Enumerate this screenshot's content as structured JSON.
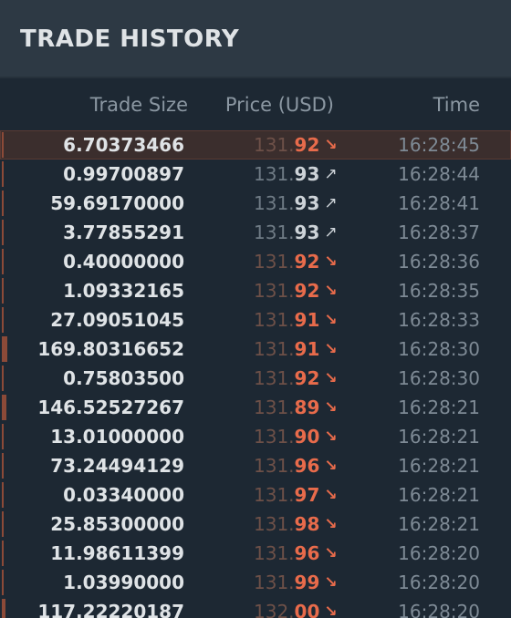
{
  "panel": {
    "title": "TRADE HISTORY",
    "columns": {
      "trade_size": "Trade Size",
      "price": "Price (USD)",
      "time": "Time"
    }
  },
  "colors": {
    "background": "#1d2833",
    "header": "#2d3944",
    "sell": "#e86b4b",
    "buy": "#cdd3d8"
  },
  "trades": [
    {
      "size": "6.70373466",
      "price_int": "131.",
      "price_dec": "92",
      "dir": "down",
      "arrow": "↘",
      "time": "16:28:45",
      "depth": 0.3
    },
    {
      "size": "0.99700897",
      "price_int": "131.",
      "price_dec": "93",
      "dir": "up",
      "arrow": "↗",
      "time": "16:28:44",
      "depth": 0.2
    },
    {
      "size": "59.69170000",
      "price_int": "131.",
      "price_dec": "93",
      "dir": "up",
      "arrow": "↗",
      "time": "16:28:41",
      "depth": 0.3
    },
    {
      "size": "3.77855291",
      "price_int": "131.",
      "price_dec": "93",
      "dir": "up",
      "arrow": "↗",
      "time": "16:28:37",
      "depth": 0.2
    },
    {
      "size": "0.40000000",
      "price_int": "131.",
      "price_dec": "92",
      "dir": "down",
      "arrow": "↘",
      "time": "16:28:36",
      "depth": 0.2
    },
    {
      "size": "1.09332165",
      "price_int": "131.",
      "price_dec": "92",
      "dir": "down",
      "arrow": "↘",
      "time": "16:28:35",
      "depth": 0.2
    },
    {
      "size": "27.09051045",
      "price_int": "131.",
      "price_dec": "91",
      "dir": "down",
      "arrow": "↘",
      "time": "16:28:33",
      "depth": 0.3
    },
    {
      "size": "169.80316652",
      "price_int": "131.",
      "price_dec": "91",
      "dir": "down",
      "arrow": "↘",
      "time": "16:28:30",
      "depth": 1
    },
    {
      "size": "0.75803500",
      "price_int": "131.",
      "price_dec": "92",
      "dir": "down",
      "arrow": "↘",
      "time": "16:28:30",
      "depth": 0.2
    },
    {
      "size": "146.52527267",
      "price_int": "131.",
      "price_dec": "89",
      "dir": "down",
      "arrow": "↘",
      "time": "16:28:21",
      "depth": 0.9
    },
    {
      "size": "13.01000000",
      "price_int": "131.",
      "price_dec": "90",
      "dir": "down",
      "arrow": "↘",
      "time": "16:28:21",
      "depth": 0.3
    },
    {
      "size": "73.24494129",
      "price_int": "131.",
      "price_dec": "96",
      "dir": "down",
      "arrow": "↘",
      "time": "16:28:21",
      "depth": 0.4
    },
    {
      "size": "0.03340000",
      "price_int": "131.",
      "price_dec": "97",
      "dir": "down",
      "arrow": "↘",
      "time": "16:28:21",
      "depth": 0.2
    },
    {
      "size": "25.85300000",
      "price_int": "131.",
      "price_dec": "98",
      "dir": "down",
      "arrow": "↘",
      "time": "16:28:21",
      "depth": 0.3
    },
    {
      "size": "11.98611399",
      "price_int": "131.",
      "price_dec": "96",
      "dir": "down",
      "arrow": "↘",
      "time": "16:28:20",
      "depth": 0.2
    },
    {
      "size": "1.03990000",
      "price_int": "131.",
      "price_dec": "99",
      "dir": "down",
      "arrow": "↘",
      "time": "16:28:20",
      "depth": 0.2
    },
    {
      "size": "117.22220187",
      "price_int": "132.",
      "price_dec": "00",
      "dir": "down",
      "arrow": "↘",
      "time": "16:28:20",
      "depth": 0.7
    }
  ]
}
